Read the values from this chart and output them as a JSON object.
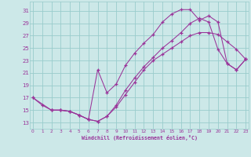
{
  "xlabel": "Windchill (Refroidissement éolien,°C)",
  "bg_color": "#cce8e8",
  "grid_color": "#99cccc",
  "line_color": "#993399",
  "x_ticks": [
    0,
    1,
    2,
    3,
    4,
    5,
    6,
    7,
    8,
    9,
    10,
    11,
    12,
    13,
    14,
    15,
    16,
    17,
    18,
    19,
    20,
    21,
    22,
    23
  ],
  "y_ticks": [
    13,
    15,
    17,
    19,
    21,
    23,
    25,
    27,
    29,
    31
  ],
  "xlim": [
    -0.3,
    23.3
  ],
  "ylim": [
    12.0,
    32.5
  ],
  "line1_x": [
    0,
    1,
    2,
    3,
    4,
    5,
    6,
    7,
    8,
    9,
    10,
    11,
    12,
    13,
    14,
    15,
    16,
    17,
    18,
    19,
    20,
    21,
    22,
    23
  ],
  "line1_y": [
    17.0,
    15.8,
    15.0,
    15.0,
    14.8,
    14.2,
    13.5,
    13.2,
    14.0,
    15.5,
    17.5,
    19.5,
    21.5,
    23.0,
    24.0,
    25.0,
    26.0,
    27.0,
    27.5,
    27.5,
    27.2,
    26.0,
    24.8,
    23.2
  ],
  "line2_x": [
    0,
    2,
    3,
    4,
    5,
    6,
    7,
    8,
    9,
    10,
    11,
    12,
    13,
    14,
    15,
    16,
    17,
    18,
    19,
    20,
    21,
    22,
    23
  ],
  "line2_y": [
    17.0,
    15.0,
    15.0,
    14.8,
    14.2,
    13.5,
    21.5,
    17.8,
    19.2,
    22.2,
    24.2,
    25.8,
    27.2,
    29.2,
    30.5,
    31.2,
    31.2,
    29.5,
    30.2,
    29.2,
    22.5,
    21.5,
    23.2
  ],
  "line3_x": [
    2,
    3,
    4,
    5,
    6,
    7,
    8,
    9,
    10,
    11,
    12,
    13,
    14,
    15,
    16,
    17,
    18,
    19,
    20,
    21,
    22,
    23
  ],
  "line3_y": [
    15.0,
    15.0,
    14.8,
    14.2,
    13.5,
    13.2,
    14.0,
    15.8,
    18.2,
    20.2,
    22.0,
    23.5,
    25.0,
    26.2,
    27.5,
    29.0,
    29.8,
    29.2,
    24.8,
    22.5,
    21.5,
    23.2
  ]
}
